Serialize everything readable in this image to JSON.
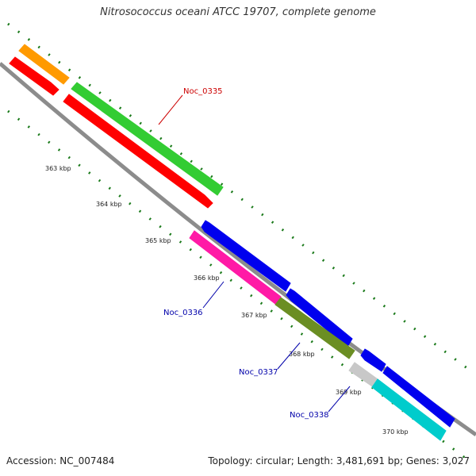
{
  "title": "Nitrosococcus oceani ATCC 19707, complete genome",
  "footer": {
    "accession": "Accession: NC_007484",
    "summary": "Topology: circular; Length: 3,481,691 bp; Genes: 3,027"
  },
  "scale_labels": [
    "363 kbp",
    "364 kbp",
    "365 kbp",
    "366 kbp",
    "367 kbp",
    "368 kbp",
    "369 kbp",
    "370 kbp"
  ],
  "gene_labels": [
    {
      "text": "Noc_0335",
      "color": "#cc0000"
    },
    {
      "text": "Noc_0336",
      "color": "#0000aa"
    },
    {
      "text": "Noc_0337",
      "color": "#0000aa"
    },
    {
      "text": "Noc_0338",
      "color": "#0000aa"
    }
  ],
  "colors": {
    "backbone": "#8c8c8c",
    "ticks": "#1a7a1a",
    "orange": "#ff9a00",
    "red": "#ff0000",
    "green": "#33cc33",
    "blue": "#0000ee",
    "magenta": "#ff1aa6",
    "olive": "#6b8e23",
    "grey": "#c8c8c8",
    "cyan": "#00cccc"
  }
}
